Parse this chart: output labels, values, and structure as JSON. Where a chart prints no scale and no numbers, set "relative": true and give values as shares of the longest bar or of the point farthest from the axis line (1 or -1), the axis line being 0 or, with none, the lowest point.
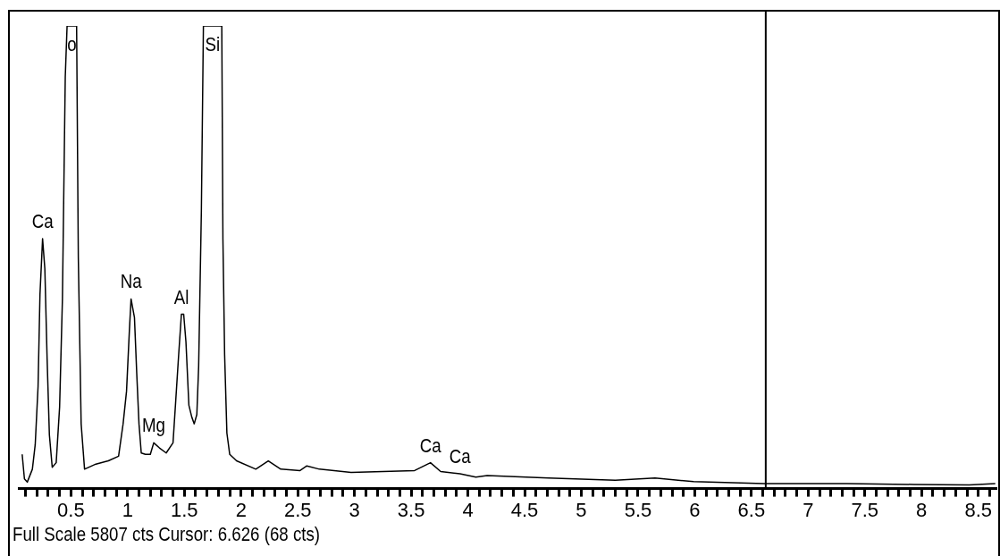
{
  "chart_data": {
    "type": "line",
    "relative": true,
    "legend": false,
    "grid": false,
    "marker": "none",
    "line_style": "solid",
    "x": [
      0.07,
      0.09,
      0.115,
      0.16,
      0.185,
      0.21,
      0.227,
      0.25,
      0.27,
      0.29,
      0.31,
      0.335,
      0.37,
      0.4,
      0.425,
      0.45,
      0.466,
      0.55,
      0.565,
      0.59,
      0.62,
      0.72,
      0.83,
      0.92,
      0.96,
      0.99,
      1.015,
      1.03,
      1.06,
      1.08,
      1.1,
      1.12,
      1.156,
      1.2,
      1.23,
      1.28,
      1.34,
      1.4,
      1.424,
      1.45,
      1.474,
      1.494,
      1.514,
      1.54,
      1.565,
      1.587,
      1.61,
      1.626,
      1.65,
      1.668,
      1.83,
      1.84,
      1.855,
      1.875,
      1.9,
      1.96,
      2.13,
      2.24,
      2.35,
      2.52,
      2.58,
      2.69,
      2.97,
      3.25,
      3.53,
      3.67,
      3.76,
      3.93,
      4.07,
      4.17,
      4.71,
      5.3,
      5.65,
      5.99,
      6.61,
      7.34,
      7.93,
      8.42,
      8.65
    ],
    "series": [
      {
        "color": "#000000",
        "values": [
          0.074,
          0.021,
          0.014,
          0.042,
          0.095,
          0.22,
          0.42,
          0.54,
          0.475,
          0.28,
          0.116,
          0.046,
          0.056,
          0.176,
          0.41,
          0.89,
          1,
          1,
          0.5,
          0.14,
          0.042,
          0.053,
          0.06,
          0.07,
          0.14,
          0.21,
          0.34,
          0.41,
          0.37,
          0.25,
          0.14,
          0.077,
          0.074,
          0.074,
          0.099,
          0.088,
          0.077,
          0.099,
          0.19,
          0.29,
          0.377,
          0.377,
          0.317,
          0.18,
          0.155,
          0.14,
          0.16,
          0.264,
          0.6,
          1,
          1,
          0.54,
          0.29,
          0.12,
          0.074,
          0.06,
          0.042,
          0.06,
          0.042,
          0.039,
          0.049,
          0.042,
          0.035,
          0.037,
          0.039,
          0.056,
          0.037,
          0.032,
          0.025,
          0.028,
          0.023,
          0.018,
          0.023,
          0.015,
          0.011,
          0.011,
          0.009,
          0.008,
          0.011
        ]
      }
    ],
    "xlim": [
      0.04,
      8.66
    ],
    "xticks": [
      {
        "value": 0.1,
        "label": null
      },
      {
        "value": 0.2,
        "label": null
      },
      {
        "value": 0.3,
        "label": null
      },
      {
        "value": 0.4,
        "label": null
      },
      0.5,
      {
        "value": 0.6,
        "label": null
      },
      {
        "value": 0.7,
        "label": null
      },
      {
        "value": 0.8,
        "label": null
      },
      {
        "value": 0.9,
        "label": null
      },
      1,
      {
        "value": 1.1,
        "label": null
      },
      {
        "value": 1.2,
        "label": null
      },
      {
        "value": 1.3,
        "label": null
      },
      {
        "value": 1.4,
        "label": null
      },
      1.5,
      {
        "value": 1.6,
        "label": null
      },
      {
        "value": 1.7,
        "label": null
      },
      {
        "value": 1.8,
        "label": null
      },
      {
        "value": 1.9,
        "label": null
      },
      2,
      {
        "value": 2.1,
        "label": null
      },
      {
        "value": 2.2,
        "label": null
      },
      {
        "value": 2.3,
        "label": null
      },
      {
        "value": 2.4,
        "label": null
      },
      2.5,
      {
        "value": 2.6,
        "label": null
      },
      {
        "value": 2.7,
        "label": null
      },
      {
        "value": 2.8,
        "label": null
      },
      {
        "value": 2.9,
        "label": null
      },
      3,
      {
        "value": 3.1,
        "label": null
      },
      {
        "value": 3.2,
        "label": null
      },
      {
        "value": 3.3,
        "label": null
      },
      {
        "value": 3.4,
        "label": null
      },
      3.5,
      {
        "value": 3.6,
        "label": null
      },
      {
        "value": 3.7,
        "label": null
      },
      {
        "value": 3.8,
        "label": null
      },
      {
        "value": 3.9,
        "label": null
      },
      4,
      {
        "value": 4.1,
        "label": null
      },
      {
        "value": 4.2,
        "label": null
      },
      {
        "value": 4.3,
        "label": null
      },
      {
        "value": 4.4,
        "label": null
      },
      4.5,
      {
        "value": 4.6,
        "label": null
      },
      {
        "value": 4.7,
        "label": null
      },
      {
        "value": 4.8,
        "label": null
      },
      {
        "value": 4.9,
        "label": null
      },
      5,
      {
        "value": 5.1,
        "label": null
      },
      {
        "value": 5.2,
        "label": null
      },
      {
        "value": 5.3,
        "label": null
      },
      {
        "value": 5.4,
        "label": null
      },
      5.5,
      {
        "value": 5.6,
        "label": null
      },
      {
        "value": 5.7,
        "label": null
      },
      {
        "value": 5.8,
        "label": null
      },
      {
        "value": 5.9,
        "label": null
      },
      6,
      {
        "value": 6.1,
        "label": null
      },
      {
        "value": 6.2,
        "label": null
      },
      {
        "value": 6.3,
        "label": null
      },
      {
        "value": 6.4,
        "label": null
      },
      6.5,
      {
        "value": 6.6,
        "label": null
      },
      {
        "value": 6.7,
        "label": null
      },
      {
        "value": 6.8,
        "label": null
      },
      {
        "value": 6.9,
        "label": null
      },
      7,
      {
        "value": 7.1,
        "label": null
      },
      {
        "value": 7.2,
        "label": null
      },
      {
        "value": 7.3,
        "label": null
      },
      {
        "value": 7.4,
        "label": null
      },
      7.5,
      {
        "value": 7.6,
        "label": null
      },
      {
        "value": 7.7,
        "label": null
      },
      {
        "value": 7.8,
        "label": null
      },
      {
        "value": 7.9,
        "label": null
      },
      8,
      {
        "value": 8.1,
        "label": null
      },
      {
        "value": 8.2,
        "label": null
      },
      {
        "value": 8.3,
        "label": null
      },
      {
        "value": 8.4,
        "label": null
      },
      8.5,
      {
        "value": 8.6,
        "label": null
      }
    ],
    "ref_lines": [
      {
        "axis": "x",
        "value": 6.626,
        "color": "#000000"
      }
    ],
    "annotations": [
      {
        "text": "Ca",
        "x": 0.25,
        "y": 0.54
      },
      {
        "text": "o",
        "x": 0.466,
        "y": 1
      },
      {
        "text": "Na",
        "x": 1.03,
        "y": 0.41
      },
      {
        "text": "Mg",
        "x": 1.23,
        "y": 0.099
      },
      {
        "text": "Al",
        "x": 1.474,
        "y": 0.377
      },
      {
        "text": "Si",
        "x": 1.668,
        "y": 1
      },
      {
        "text": "Ca",
        "x": 3.67,
        "y": 0.056
      },
      {
        "text": "Ca",
        "x": 3.93,
        "y": 0.032
      },
      "Full Scale 5807 cts Cursor: 6.626 (68 cts)"
    ]
  }
}
